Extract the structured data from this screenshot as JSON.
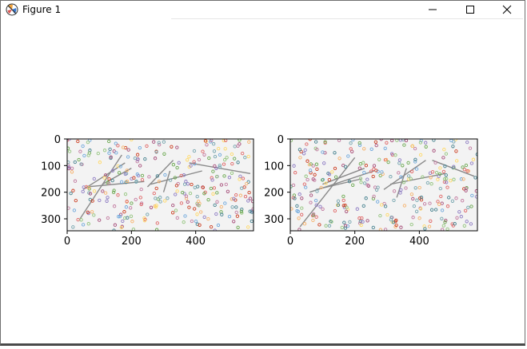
{
  "window": {
    "title": "Figure 1",
    "icon": "matplotlib-figure-icon",
    "controls": {
      "minimize": "minimize-icon",
      "maximize": "maximize-icon",
      "close": "close-icon"
    }
  },
  "figure": {
    "subplots": [
      {
        "id": "left",
        "x_ticks": [
          "0",
          "200",
          "400"
        ],
        "y_ticks": [
          "0",
          "100",
          "200",
          "300"
        ],
        "xlim": [
          0,
          580
        ],
        "ylim": [
          345,
          0
        ]
      },
      {
        "id": "right",
        "x_ticks": [
          "0",
          "200",
          "400"
        ],
        "y_ticks": [
          "0",
          "100",
          "200",
          "300"
        ],
        "xlim": [
          0,
          580
        ],
        "ylim": [
          345,
          0
        ]
      }
    ]
  }
}
